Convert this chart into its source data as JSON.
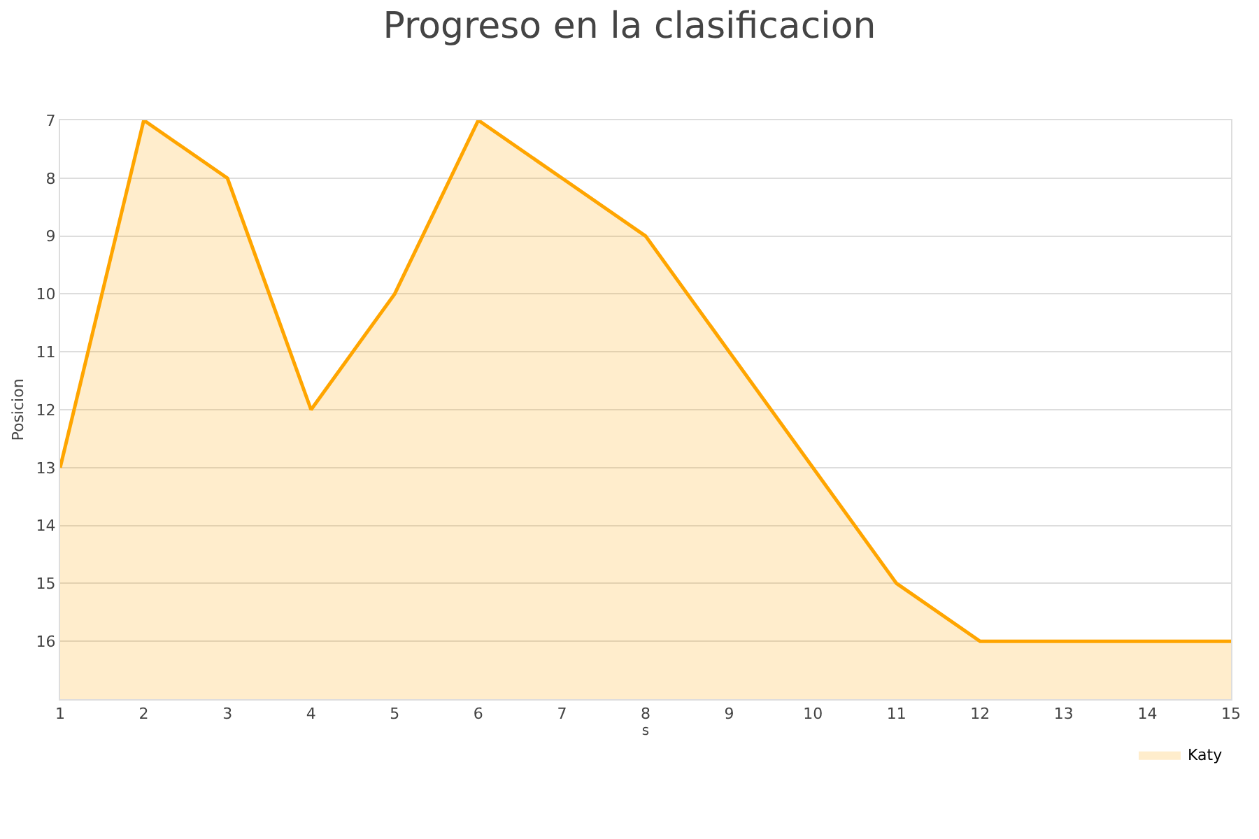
{
  "chart_data": {
    "type": "area",
    "title": "Progreso en la clasificacion",
    "xlabel": "s",
    "ylabel": "Posicion",
    "x": [
      1,
      2,
      3,
      4,
      5,
      6,
      7,
      8,
      9,
      10,
      11,
      12,
      13,
      14,
      15
    ],
    "series": [
      {
        "name": "Katy",
        "color": "#ffa500",
        "values": [
          13,
          7,
          8,
          12,
          10,
          7,
          8,
          9,
          11,
          13,
          15,
          16,
          16,
          16,
          16
        ]
      }
    ],
    "xlim": [
      1,
      15
    ],
    "xticks": [
      1,
      2,
      3,
      4,
      5,
      6,
      7,
      8,
      9,
      10,
      11,
      12,
      13,
      14,
      15
    ],
    "ylim": [
      17,
      7
    ],
    "yticks": [
      7,
      8,
      9,
      10,
      11,
      12,
      13,
      14,
      15,
      16
    ],
    "grid": "y",
    "legend": "bottom right",
    "marker": "none",
    "line_style": "solid"
  }
}
